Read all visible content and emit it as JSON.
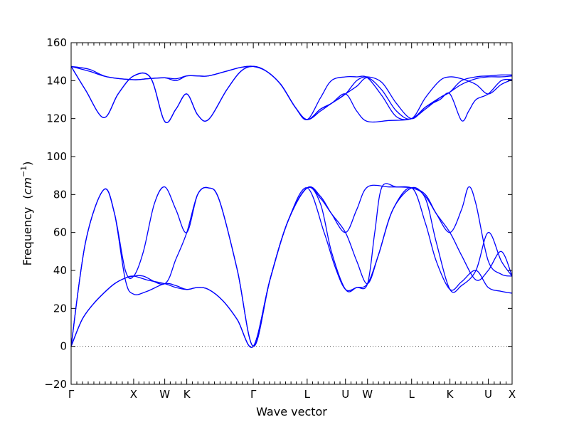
{
  "chart_data": {
    "type": "line",
    "title": "",
    "xlabel": "Wave vector",
    "ylabel": "Frequency",
    "ylabel_unit_base": "cm",
    "ylabel_unit_exp": "−1",
    "ylim": [
      -20,
      160
    ],
    "yticks": [
      -20,
      0,
      20,
      40,
      60,
      80,
      100,
      120,
      140,
      160
    ],
    "xlim": [
      0,
      12.2
    ],
    "x_special_points": [
      {
        "label": "Γ",
        "x": 0
      },
      {
        "label": "X",
        "x": 1.73
      },
      {
        "label": "W",
        "x": 2.59
      },
      {
        "label": "K",
        "x": 3.2
      },
      {
        "label": "Γ",
        "x": 5.04
      },
      {
        "label": "L",
        "x": 6.53
      },
      {
        "label": "U",
        "x": 7.59
      },
      {
        "label": "W",
        "x": 8.2
      },
      {
        "label": "L",
        "x": 9.42
      },
      {
        "label": "K",
        "x": 10.48
      },
      {
        "label": "U",
        "x": 11.54
      },
      {
        "label": "X",
        "x": 12.2
      }
    ],
    "reference_line": {
      "y": 0,
      "style": "dotted"
    },
    "line_color": "#0000ff",
    "series": [
      {
        "values": [
          [
            0,
            0
          ],
          [
            0.3,
            14
          ],
          [
            0.6,
            22
          ],
          [
            0.9,
            28
          ],
          [
            1.2,
            33
          ],
          [
            1.5,
            36
          ],
          [
            1.73,
            37
          ],
          [
            2.1,
            35
          ],
          [
            2.59,
            33
          ],
          [
            2.9,
            31
          ],
          [
            3.2,
            30
          ],
          [
            3.5,
            31
          ],
          [
            3.8,
            30
          ],
          [
            4.2,
            24
          ],
          [
            4.6,
            14
          ],
          [
            5.04,
            0
          ],
          [
            5.5,
            35
          ],
          [
            6.0,
            66
          ],
          [
            6.53,
            83.5
          ],
          [
            7.0,
            60
          ],
          [
            7.3,
            42
          ],
          [
            7.59,
            30
          ],
          [
            7.9,
            31
          ],
          [
            8.2,
            33
          ],
          [
            8.5,
            48
          ],
          [
            8.9,
            72
          ],
          [
            9.42,
            83.5
          ],
          [
            9.8,
            65
          ],
          [
            10.1,
            45
          ],
          [
            10.48,
            30
          ],
          [
            10.8,
            34
          ],
          [
            11.2,
            40
          ],
          [
            11.54,
            31
          ],
          [
            11.9,
            29
          ],
          [
            12.2,
            28
          ]
        ]
      },
      {
        "values": [
          [
            0,
            0
          ],
          [
            0.3,
            14
          ],
          [
            0.6,
            22
          ],
          [
            0.9,
            28
          ],
          [
            1.2,
            33
          ],
          [
            1.5,
            36
          ],
          [
            1.73,
            37
          ],
          [
            2.0,
            37
          ],
          [
            2.59,
            33
          ],
          [
            2.9,
            46
          ],
          [
            3.2,
            60
          ],
          [
            3.5,
            80
          ],
          [
            3.8,
            83.5
          ],
          [
            4.1,
            77
          ],
          [
            4.6,
            40
          ],
          [
            5.04,
            0
          ],
          [
            5.5,
            35
          ],
          [
            6.0,
            66
          ],
          [
            6.53,
            83.5
          ],
          [
            6.9,
            78
          ],
          [
            7.2,
            70
          ],
          [
            7.59,
            60
          ],
          [
            7.9,
            45
          ],
          [
            8.2,
            33
          ],
          [
            8.5,
            48
          ],
          [
            8.9,
            72
          ],
          [
            9.42,
            83.5
          ],
          [
            9.8,
            79
          ],
          [
            10.1,
            70
          ],
          [
            10.48,
            60
          ],
          [
            10.8,
            48
          ],
          [
            11.2,
            35
          ],
          [
            11.54,
            40
          ],
          [
            11.9,
            50
          ],
          [
            12.2,
            37
          ]
        ]
      },
      {
        "values": [
          [
            0,
            0
          ],
          [
            0.4,
            55
          ],
          [
            0.9,
            82.5
          ],
          [
            1.2,
            70
          ],
          [
            1.5,
            35
          ],
          [
            1.73,
            27.5
          ],
          [
            2.1,
            29
          ],
          [
            2.59,
            33
          ],
          [
            2.9,
            32
          ],
          [
            3.2,
            30
          ],
          [
            3.5,
            31
          ],
          [
            3.8,
            30
          ],
          [
            4.2,
            24
          ],
          [
            4.6,
            14
          ],
          [
            5.04,
            0
          ],
          [
            5.5,
            35
          ],
          [
            6.0,
            66
          ],
          [
            6.53,
            83.5
          ],
          [
            6.9,
            75
          ],
          [
            7.2,
            50
          ],
          [
            7.59,
            30
          ],
          [
            7.9,
            31
          ],
          [
            8.2,
            33
          ],
          [
            8.4,
            60
          ],
          [
            8.6,
            84
          ],
          [
            9.0,
            84
          ],
          [
            9.42,
            83.5
          ],
          [
            9.8,
            78
          ],
          [
            10.1,
            55
          ],
          [
            10.48,
            30
          ],
          [
            10.8,
            32
          ],
          [
            11.2,
            40
          ],
          [
            11.54,
            60
          ],
          [
            11.9,
            45
          ],
          [
            12.2,
            37
          ]
        ]
      },
      {
        "values": [
          [
            0,
            0
          ],
          [
            0.4,
            55
          ],
          [
            0.9,
            82.5
          ],
          [
            1.2,
            70
          ],
          [
            1.5,
            40
          ],
          [
            1.73,
            37
          ],
          [
            2.0,
            50
          ],
          [
            2.3,
            75
          ],
          [
            2.59,
            84
          ],
          [
            2.9,
            72
          ],
          [
            3.2,
            60
          ],
          [
            3.5,
            80
          ],
          [
            3.8,
            83.5
          ],
          [
            4.1,
            77
          ],
          [
            4.6,
            40
          ],
          [
            5.04,
            0
          ],
          [
            5.5,
            35
          ],
          [
            6.0,
            66
          ],
          [
            6.53,
            83.5
          ],
          [
            6.9,
            79
          ],
          [
            7.2,
            70
          ],
          [
            7.59,
            60
          ],
          [
            7.9,
            72
          ],
          [
            8.2,
            84
          ],
          [
            8.8,
            84
          ],
          [
            9.42,
            83.5
          ],
          [
            9.8,
            80
          ],
          [
            10.1,
            70
          ],
          [
            10.48,
            60
          ],
          [
            10.8,
            72
          ],
          [
            11.0,
            84
          ],
          [
            11.2,
            75
          ],
          [
            11.54,
            45
          ],
          [
            11.9,
            38
          ],
          [
            12.2,
            37
          ]
        ]
      },
      {
        "values": [
          [
            0,
            147.5
          ],
          [
            0.5,
            145
          ],
          [
            1.0,
            142
          ],
          [
            1.73,
            140.5
          ],
          [
            2.1,
            141
          ],
          [
            2.59,
            141.5
          ],
          [
            2.9,
            140
          ],
          [
            3.2,
            142.5
          ],
          [
            3.5,
            142.5
          ],
          [
            3.8,
            142.5
          ],
          [
            4.3,
            145
          ],
          [
            4.7,
            147
          ],
          [
            5.04,
            147.5
          ],
          [
            5.4,
            145
          ],
          [
            5.8,
            138
          ],
          [
            6.2,
            126
          ],
          [
            6.53,
            119.5
          ],
          [
            6.9,
            124
          ],
          [
            7.2,
            128
          ],
          [
            7.59,
            133
          ],
          [
            7.9,
            140
          ],
          [
            8.2,
            142
          ],
          [
            8.6,
            139
          ],
          [
            9.0,
            128
          ],
          [
            9.42,
            120
          ],
          [
            9.8,
            126
          ],
          [
            10.2,
            131
          ],
          [
            10.48,
            134
          ],
          [
            10.8,
            140
          ],
          [
            11.2,
            142
          ],
          [
            11.54,
            142.5
          ],
          [
            11.9,
            143
          ],
          [
            12.2,
            143
          ]
        ]
      },
      {
        "values": [
          [
            0,
            147.5
          ],
          [
            0.5,
            146
          ],
          [
            1.0,
            142
          ],
          [
            1.73,
            140.5
          ],
          [
            2.1,
            141
          ],
          [
            2.59,
            141.5
          ],
          [
            2.9,
            141
          ],
          [
            3.2,
            142.5
          ],
          [
            3.5,
            142.5
          ],
          [
            3.8,
            142.5
          ],
          [
            4.3,
            145
          ],
          [
            4.7,
            147
          ],
          [
            5.04,
            147.5
          ],
          [
            5.4,
            145
          ],
          [
            5.8,
            138
          ],
          [
            6.2,
            126
          ],
          [
            6.53,
            119.5
          ],
          [
            6.9,
            131
          ],
          [
            7.2,
            140
          ],
          [
            7.59,
            142
          ],
          [
            7.9,
            142
          ],
          [
            8.2,
            141.5
          ],
          [
            8.6,
            132
          ],
          [
            9.0,
            121
          ],
          [
            9.42,
            120
          ],
          [
            9.8,
            125
          ],
          [
            10.2,
            131
          ],
          [
            10.48,
            134
          ],
          [
            10.8,
            138
          ],
          [
            11.2,
            141
          ],
          [
            11.54,
            142
          ],
          [
            11.9,
            142
          ],
          [
            12.2,
            142.5
          ]
        ]
      },
      {
        "values": [
          [
            0,
            147.5
          ],
          [
            0.4,
            135
          ],
          [
            0.9,
            120.5
          ],
          [
            1.3,
            133
          ],
          [
            1.73,
            142.5
          ],
          [
            2.2,
            141.5
          ],
          [
            2.59,
            118.5
          ],
          [
            2.9,
            125
          ],
          [
            3.2,
            133
          ],
          [
            3.5,
            122
          ],
          [
            3.8,
            119.5
          ],
          [
            4.3,
            135
          ],
          [
            4.7,
            145
          ],
          [
            5.04,
            147.5
          ],
          [
            5.4,
            145
          ],
          [
            5.8,
            138
          ],
          [
            6.2,
            126
          ],
          [
            6.53,
            119.5
          ],
          [
            6.9,
            125
          ],
          [
            7.2,
            128
          ],
          [
            7.59,
            133
          ],
          [
            7.9,
            124
          ],
          [
            8.2,
            118.5
          ],
          [
            8.8,
            119
          ],
          [
            9.42,
            120
          ],
          [
            9.8,
            126
          ],
          [
            10.2,
            130
          ],
          [
            10.48,
            133
          ],
          [
            10.8,
            119
          ],
          [
            11.0,
            124
          ],
          [
            11.2,
            130
          ],
          [
            11.54,
            133
          ],
          [
            11.9,
            140
          ],
          [
            12.2,
            140.5
          ]
        ]
      },
      {
        "values": [
          [
            0,
            147.5
          ],
          [
            0.4,
            135
          ],
          [
            0.9,
            120.5
          ],
          [
            1.3,
            133
          ],
          [
            1.73,
            142.5
          ],
          [
            2.2,
            141.5
          ],
          [
            2.59,
            118.5
          ],
          [
            2.9,
            125
          ],
          [
            3.2,
            133
          ],
          [
            3.5,
            122
          ],
          [
            3.8,
            119.5
          ],
          [
            4.3,
            135
          ],
          [
            4.7,
            145
          ],
          [
            5.04,
            147.5
          ],
          [
            5.4,
            145
          ],
          [
            5.8,
            138
          ],
          [
            6.2,
            126
          ],
          [
            6.53,
            119.5
          ],
          [
            6.9,
            125
          ],
          [
            7.2,
            128
          ],
          [
            7.59,
            133
          ],
          [
            7.9,
            137
          ],
          [
            8.2,
            141.5
          ],
          [
            8.6,
            135
          ],
          [
            9.0,
            124
          ],
          [
            9.42,
            120
          ],
          [
            9.8,
            131
          ],
          [
            10.2,
            140
          ],
          [
            10.48,
            142
          ],
          [
            10.8,
            141
          ],
          [
            11.2,
            138
          ],
          [
            11.54,
            133
          ],
          [
            11.9,
            138
          ],
          [
            12.2,
            140.5
          ]
        ]
      }
    ]
  }
}
